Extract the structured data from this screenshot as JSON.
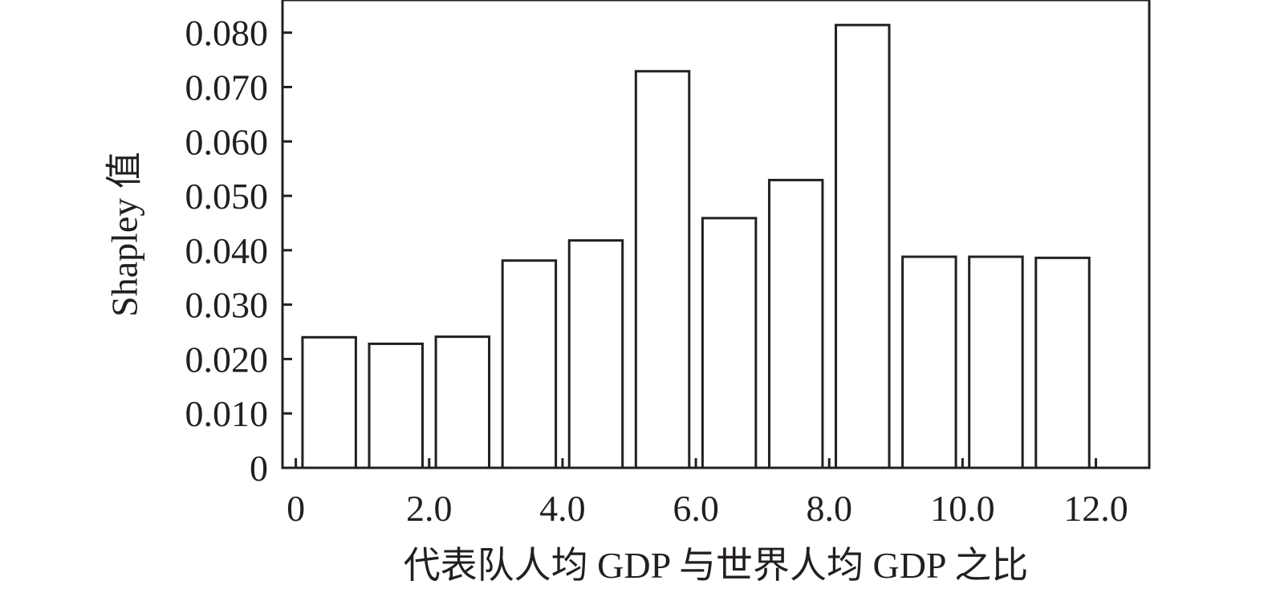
{
  "chart_data": {
    "type": "bar",
    "title": "",
    "xlabel": "代表队人均 GDP 与世界人均 GDP 之比",
    "ylabel": "Shapley 值",
    "x": [
      0.5,
      1.5,
      2.5,
      3.5,
      4.5,
      5.5,
      6.5,
      7.5,
      8.5,
      9.5,
      10.5,
      11.5
    ],
    "values": [
      0.024,
      0.0228,
      0.0241,
      0.0381,
      0.0418,
      0.0729,
      0.0459,
      0.0529,
      0.0814,
      0.0388,
      0.0388,
      0.0386
    ],
    "xlim": [
      -0.2,
      12.8
    ],
    "ylim": [
      0,
      0.086
    ],
    "xticks": [
      0,
      2,
      4,
      6,
      8,
      10,
      12
    ],
    "xtick_labels": [
      "0",
      "2.0",
      "4.0",
      "6.0",
      "8.0",
      "10.0",
      "12.0"
    ],
    "yticks": [
      0,
      0.01,
      0.02,
      0.03,
      0.04,
      0.05,
      0.06,
      0.07,
      0.08
    ],
    "ytick_labels": [
      "0",
      "0.010",
      "0.020",
      "0.030",
      "0.040",
      "0.050",
      "0.060",
      "0.070",
      "0.080"
    ],
    "grid": false,
    "legend": "none",
    "colors": {
      "bar_fill": "#ffffff",
      "bar_stroke": "#231f20",
      "axis": "#231f20",
      "text": "#231f20"
    }
  }
}
